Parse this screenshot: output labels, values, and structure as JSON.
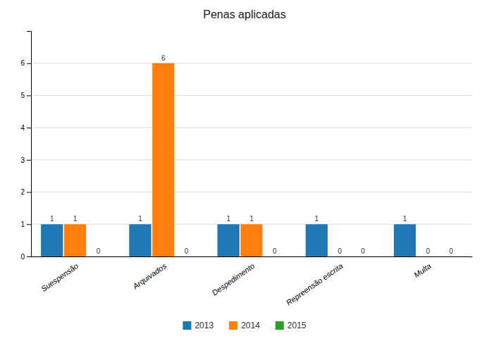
{
  "chart_data": {
    "type": "bar",
    "title": "Penas aplicadas",
    "categories": [
      "Suespensão",
      "Arquivados",
      "Despedimento",
      "Repreensão escrita",
      "Multa"
    ],
    "series": [
      {
        "name": "2013",
        "values": [
          1,
          1,
          1,
          1,
          1
        ]
      },
      {
        "name": "2014",
        "values": [
          1,
          6,
          1,
          0,
          0
        ]
      },
      {
        "name": "2015",
        "values": [
          0,
          0,
          0,
          0,
          0
        ]
      }
    ],
    "ylim": [
      0,
      7
    ],
    "yticks": [
      0,
      1,
      2,
      3,
      4,
      5,
      6
    ],
    "grid": true,
    "legend": "bottom",
    "data_labels": true
  }
}
